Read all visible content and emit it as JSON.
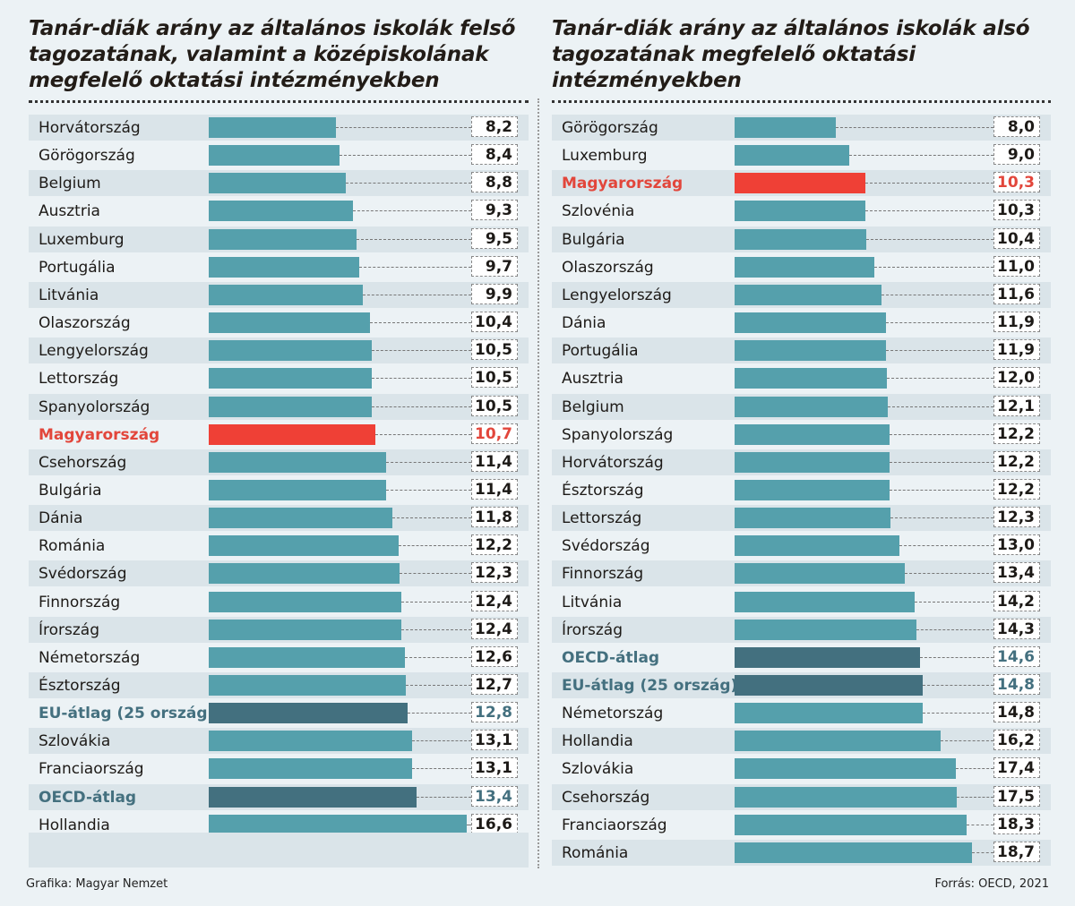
{
  "chart_data": [
    {
      "type": "bar",
      "orientation": "horizontal",
      "title": "Tanár-diák arány az általános iskolák felső tagozatának, valamint a középiskolának megfelelő oktatási intézményekben",
      "categories": [
        "Horvátország",
        "Görögország",
        "Belgium",
        "Ausztria",
        "Luxemburg",
        "Portugália",
        "Litvánia",
        "Olaszország",
        "Lengyelország",
        "Lettország",
        "Spanyolország",
        "Magyarország",
        "Csehország",
        "Bulgária",
        "Dánia",
        "Románia",
        "Svédország",
        "Finnország",
        "Írország",
        "Németország",
        "Észtország",
        "EU-átlag (25 ország)",
        "Szlovákia",
        "Franciaország",
        "OECD-átlag",
        "Hollandia"
      ],
      "values": [
        8.2,
        8.4,
        8.8,
        9.3,
        9.5,
        9.7,
        9.9,
        10.4,
        10.5,
        10.5,
        10.5,
        10.7,
        11.4,
        11.4,
        11.8,
        12.2,
        12.3,
        12.4,
        12.4,
        12.6,
        12.7,
        12.8,
        13.1,
        13.1,
        13.4,
        16.6
      ],
      "labels": [
        "8,2",
        "8,4",
        "8,8",
        "9,3",
        "9,5",
        "9,7",
        "9,9",
        "10,4",
        "10,5",
        "10,5",
        "10,5",
        "10,7",
        "11,4",
        "11,4",
        "11,8",
        "12,2",
        "12,3",
        "12,4",
        "12,4",
        "12,6",
        "12,7",
        "12,8",
        "13,1",
        "13,1",
        "13,4",
        "16,6"
      ],
      "highlight": {
        "Magyarország": "hu",
        "EU-átlag (25 ország)": "avg",
        "OECD-átlag": "avg"
      },
      "xlim": [
        0,
        16.6
      ]
    },
    {
      "type": "bar",
      "orientation": "horizontal",
      "title": "Tanár-diák arány az általános iskolák alsó tagozatának megfelelő oktatási intézményekben",
      "categories": [
        "Görögország",
        "Luxemburg",
        "Magyarország",
        "Szlovénia",
        "Bulgária",
        "Olaszország",
        "Lengyelország",
        "Dánia",
        "Portugália",
        "Ausztria",
        "Belgium",
        "Spanyolország",
        "Horvátország",
        "Észtország",
        "Lettország",
        "Svédország",
        "Finnország",
        "Litvánia",
        "Írország",
        "OECD-átlag",
        "EU-átlag (25 ország)",
        "Németország",
        "Hollandia",
        "Szlovákia",
        "Csehország",
        "Franciaország",
        "Románia"
      ],
      "values": [
        8.0,
        9.0,
        10.3,
        10.3,
        10.4,
        11.0,
        11.6,
        11.9,
        11.9,
        12.0,
        12.1,
        12.2,
        12.2,
        12.2,
        12.3,
        13.0,
        13.4,
        14.2,
        14.3,
        14.6,
        14.8,
        14.8,
        16.2,
        17.4,
        17.5,
        18.3,
        18.7
      ],
      "labels": [
        "8,0",
        "9,0",
        "10,3",
        "10,3",
        "10,4",
        "11,0",
        "11,6",
        "11,9",
        "11,9",
        "12,0",
        "12,1",
        "12,2",
        "12,2",
        "12,2",
        "12,3",
        "13,0",
        "13,4",
        "14,2",
        "14,3",
        "14,6",
        "14,8",
        "14,8",
        "16,2",
        "17,4",
        "17,5",
        "18,3",
        "18,7"
      ],
      "highlight": {
        "Magyarország": "hu",
        "EU-átlag (25 ország)": "avg",
        "OECD-átlag": "avg"
      },
      "xlim": [
        0,
        18.7
      ]
    }
  ],
  "colors": {
    "bar": "#55a0ac",
    "highlight": "#ef4036",
    "average": "#43707f"
  },
  "footer": {
    "credit": "Grafika: Magyar Nemzet",
    "source": "Forrás: OECD, 2021"
  }
}
